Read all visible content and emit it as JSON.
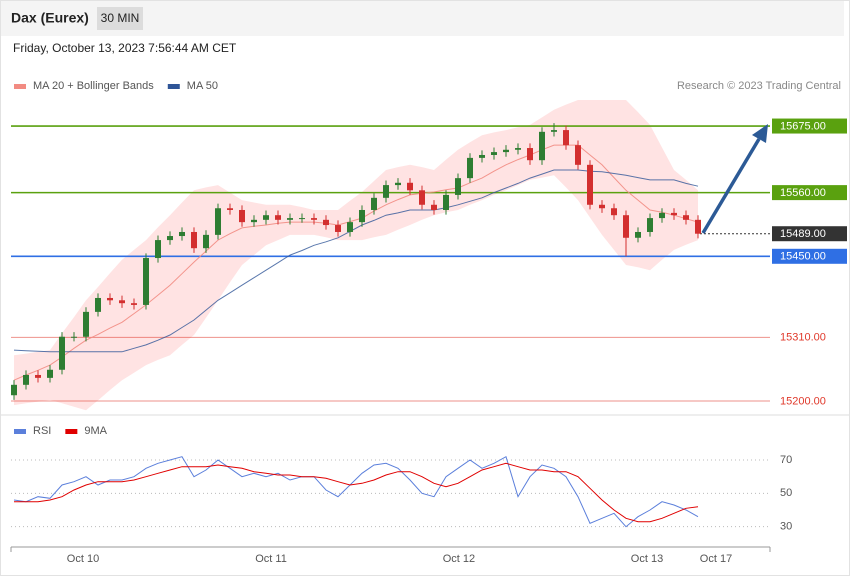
{
  "header": {
    "title": "Dax (Eurex)",
    "interval": "30 MIN",
    "timestamp": "Friday, October 13, 2023 7:56:44 AM CET"
  },
  "chart_data": [
    {
      "type": "candlestick",
      "note": "Research © 2023 Trading Central",
      "categories": [
        null,
        null,
        null,
        null,
        null,
        null,
        null,
        null,
        null,
        null,
        null,
        null,
        null,
        null,
        null,
        null,
        null,
        null,
        null,
        null,
        null,
        null,
        null,
        null,
        null,
        null,
        null,
        null,
        null,
        null,
        null,
        null,
        null,
        null,
        null,
        null,
        null,
        null,
        null,
        null,
        null,
        null,
        null,
        null,
        null,
        null,
        null,
        null,
        null,
        null,
        null,
        null,
        null,
        null,
        null,
        null,
        null,
        null
      ],
      "open": [
        15210,
        15228,
        15245,
        15240,
        15254,
        15311,
        15311,
        15354,
        15378,
        15374,
        15369,
        15366,
        15447,
        15478,
        15485,
        15492,
        15464,
        15487,
        15533,
        15530,
        15509,
        15513,
        15521,
        15513,
        15516,
        15516,
        15513,
        15504,
        15492,
        15509,
        15530,
        15551,
        15573,
        15577,
        15564,
        15539,
        15530,
        15556,
        15585,
        15620,
        15625,
        15630,
        15634,
        15637,
        15616,
        15665,
        15668,
        15642,
        15608,
        15539,
        15533,
        15521,
        15482,
        15492,
        15516,
        15525,
        15521,
        15513
      ],
      "high": [
        15236,
        15253,
        15253,
        15262,
        15319,
        15319,
        15362,
        15386,
        15386,
        15382,
        15377,
        15455,
        15486,
        15493,
        15500,
        15500,
        15495,
        15541,
        15541,
        15538,
        15521,
        15529,
        15529,
        15524,
        15524,
        15524,
        15521,
        15512,
        15517,
        15538,
        15559,
        15581,
        15585,
        15585,
        15572,
        15547,
        15564,
        15593,
        15628,
        15633,
        15638,
        15642,
        15645,
        15645,
        15673,
        15680,
        15676,
        15650,
        15616,
        15547,
        15541,
        15529,
        15500,
        15524,
        15533,
        15533,
        15529,
        15521
      ],
      "low": [
        15202,
        15220,
        15232,
        15232,
        15246,
        15303,
        15303,
        15346,
        15366,
        15361,
        15358,
        15358,
        15439,
        15470,
        15477,
        15456,
        15456,
        15479,
        15522,
        15501,
        15501,
        15505,
        15505,
        15505,
        15508,
        15505,
        15496,
        15484,
        15484,
        15501,
        15522,
        15543,
        15565,
        15556,
        15531,
        15522,
        15522,
        15548,
        15577,
        15612,
        15617,
        15622,
        15626,
        15608,
        15608,
        15657,
        15634,
        15600,
        15531,
        15525,
        15513,
        15450,
        15474,
        15484,
        15508,
        15513,
        15505,
        15481
      ],
      "close": [
        15228,
        15245,
        15240,
        15254,
        15311,
        15311,
        15354,
        15378,
        15374,
        15369,
        15366,
        15447,
        15478,
        15485,
        15492,
        15464,
        15487,
        15533,
        15530,
        15509,
        15513,
        15521,
        15513,
        15516,
        15516,
        15513,
        15504,
        15492,
        15509,
        15530,
        15551,
        15573,
        15577,
        15564,
        15539,
        15530,
        15556,
        15585,
        15620,
        15625,
        15630,
        15634,
        15637,
        15616,
        15665,
        15668,
        15642,
        15608,
        15539,
        15533,
        15521,
        15482,
        15492,
        15516,
        15525,
        15521,
        15513,
        15489
      ],
      "up_color": "#2e7d32",
      "down_color": "#d32f2f",
      "series": [
        {
          "name": "MA 20 + Bollinger Bands",
          "color": "#f28b82",
          "band_color": "#ffe3e3",
          "values": [
            15236,
            15245,
            15253,
            15262,
            15276,
            15291,
            15305,
            15315,
            15326,
            15336,
            15351,
            15366,
            15383,
            15400,
            15420,
            15440,
            15459,
            15478,
            15489,
            15499,
            15502,
            15504,
            15507,
            15509,
            15509,
            15509,
            15507,
            15504,
            15510,
            15516,
            15528,
            15539,
            15548,
            15556,
            15559,
            15561,
            15565,
            15568,
            15577,
            15585,
            15597,
            15608,
            15617,
            15625,
            15634,
            15642,
            15642,
            15642,
            15625,
            15608,
            15586,
            15564,
            15547,
            15530,
            15526,
            15521,
            15515,
            15509
          ],
          "upper": [
            15279,
            15282,
            15285,
            15288,
            15317,
            15345,
            15374,
            15397,
            15421,
            15444,
            15461,
            15478,
            15500,
            15521,
            15543,
            15564,
            15569,
            15573,
            15560,
            15547,
            15543,
            15539,
            15539,
            15539,
            15535,
            15530,
            15530,
            15530,
            15546,
            15561,
            15580,
            15599,
            15604,
            15608,
            15604,
            15599,
            15617,
            15634,
            15647,
            15659,
            15664,
            15668,
            15673,
            15677,
            15690,
            15703,
            15712,
            15720,
            15720,
            15720,
            15720,
            15720,
            15699,
            15677,
            15638,
            15599,
            15582,
            15564
          ],
          "lower": [
            15193,
            15196,
            15199,
            15202,
            15196,
            15190,
            15184,
            15201,
            15219,
            15236,
            15249,
            15262,
            15271,
            15279,
            15297,
            15314,
            15344,
            15374,
            15405,
            15435,
            15452,
            15469,
            15478,
            15487,
            15487,
            15487,
            15483,
            15478,
            15478,
            15478,
            15483,
            15487,
            15496,
            15504,
            15513,
            15521,
            15526,
            15530,
            15539,
            15547,
            15556,
            15564,
            15573,
            15582,
            15586,
            15590,
            15569,
            15547,
            15517,
            15487,
            15461,
            15435,
            15431,
            15426,
            15444,
            15461,
            15470,
            15478
          ]
        },
        {
          "name": "MA 50",
          "color": "#2f5597",
          "values": [
            15288,
            15287,
            15286,
            15285,
            15285,
            15285,
            15285,
            15285,
            15285,
            15285,
            15291,
            15297,
            15305,
            15314,
            15327,
            15340,
            15357,
            15374,
            15387,
            15400,
            15413,
            15426,
            15439,
            15452,
            15460,
            15469,
            15475,
            15482,
            15493,
            15504,
            15512,
            15521,
            15525,
            15530,
            15530,
            15530,
            15534,
            15539,
            15545,
            15551,
            15560,
            15568,
            15576,
            15585,
            15592,
            15599,
            15599,
            15599,
            15597,
            15596,
            15593,
            15590,
            15586,
            15582,
            15582,
            15582,
            15576,
            15571
          ]
        }
      ],
      "levels": [
        {
          "value": 15675,
          "label": "15675.00",
          "color": "#5aa10f",
          "line": "solid",
          "style": "box"
        },
        {
          "value": 15560,
          "label": "15560.00",
          "color": "#5aa10f",
          "line": "solid",
          "style": "box"
        },
        {
          "value": 15489,
          "label": "15489.00",
          "color": "#333333",
          "line": "dotted",
          "style": "box"
        },
        {
          "value": 15450,
          "label": "15450.00",
          "color": "#2f6fe4",
          "line": "solid",
          "style": "box"
        },
        {
          "value": 15310,
          "label": "15310.00",
          "color": "#e0392b",
          "line": "thin",
          "style": "text"
        },
        {
          "value": 15200,
          "label": "15200.00",
          "color": "#e0392b",
          "line": "thin",
          "style": "text"
        }
      ],
      "xlim": [
        -0.25,
        63
      ],
      "ylim": [
        15180,
        15730
      ]
    },
    {
      "type": "line",
      "series": [
        {
          "name": "RSI",
          "color": "#5b7fdb",
          "values": [
            46,
            45,
            48,
            47,
            55,
            57,
            60,
            55,
            58,
            58,
            60,
            65,
            68,
            70,
            72,
            60,
            64,
            70,
            65,
            60,
            62,
            60,
            62,
            58,
            60,
            60,
            52,
            48,
            55,
            62,
            67,
            68,
            65,
            58,
            50,
            48,
            60,
            65,
            70,
            65,
            68,
            72,
            48,
            60,
            67,
            65,
            60,
            48,
            32,
            35,
            38,
            30,
            36,
            40,
            45,
            43,
            40,
            36
          ]
        },
        {
          "name": "9MA",
          "color": "#e00000",
          "values": [
            45,
            45,
            45,
            46,
            48,
            52,
            55,
            57,
            57,
            57,
            58,
            60,
            62,
            64,
            66,
            66,
            66,
            67,
            66,
            65,
            63,
            62,
            61,
            61,
            60,
            60,
            59,
            57,
            55,
            56,
            58,
            61,
            63,
            63,
            60,
            56,
            54,
            56,
            60,
            64,
            66,
            68,
            66,
            64,
            64,
            63,
            63,
            60,
            53,
            46,
            40,
            35,
            33,
            33,
            35,
            38,
            41,
            42
          ]
        }
      ],
      "ylim": [
        19,
        79
      ],
      "yticks": [
        30,
        50,
        70
      ],
      "grid": true,
      "xlim": [
        -0.25,
        63
      ],
      "xticks": [
        {
          "value": 5.75,
          "label": "Oct 10"
        },
        {
          "value": 21.42,
          "label": "Oct 11"
        },
        {
          "value": 37.08,
          "label": "Oct 12"
        },
        {
          "value": 52.75,
          "label": "Oct 13"
        },
        {
          "value": 58.5,
          "label": "Oct 17"
        }
      ]
    }
  ]
}
